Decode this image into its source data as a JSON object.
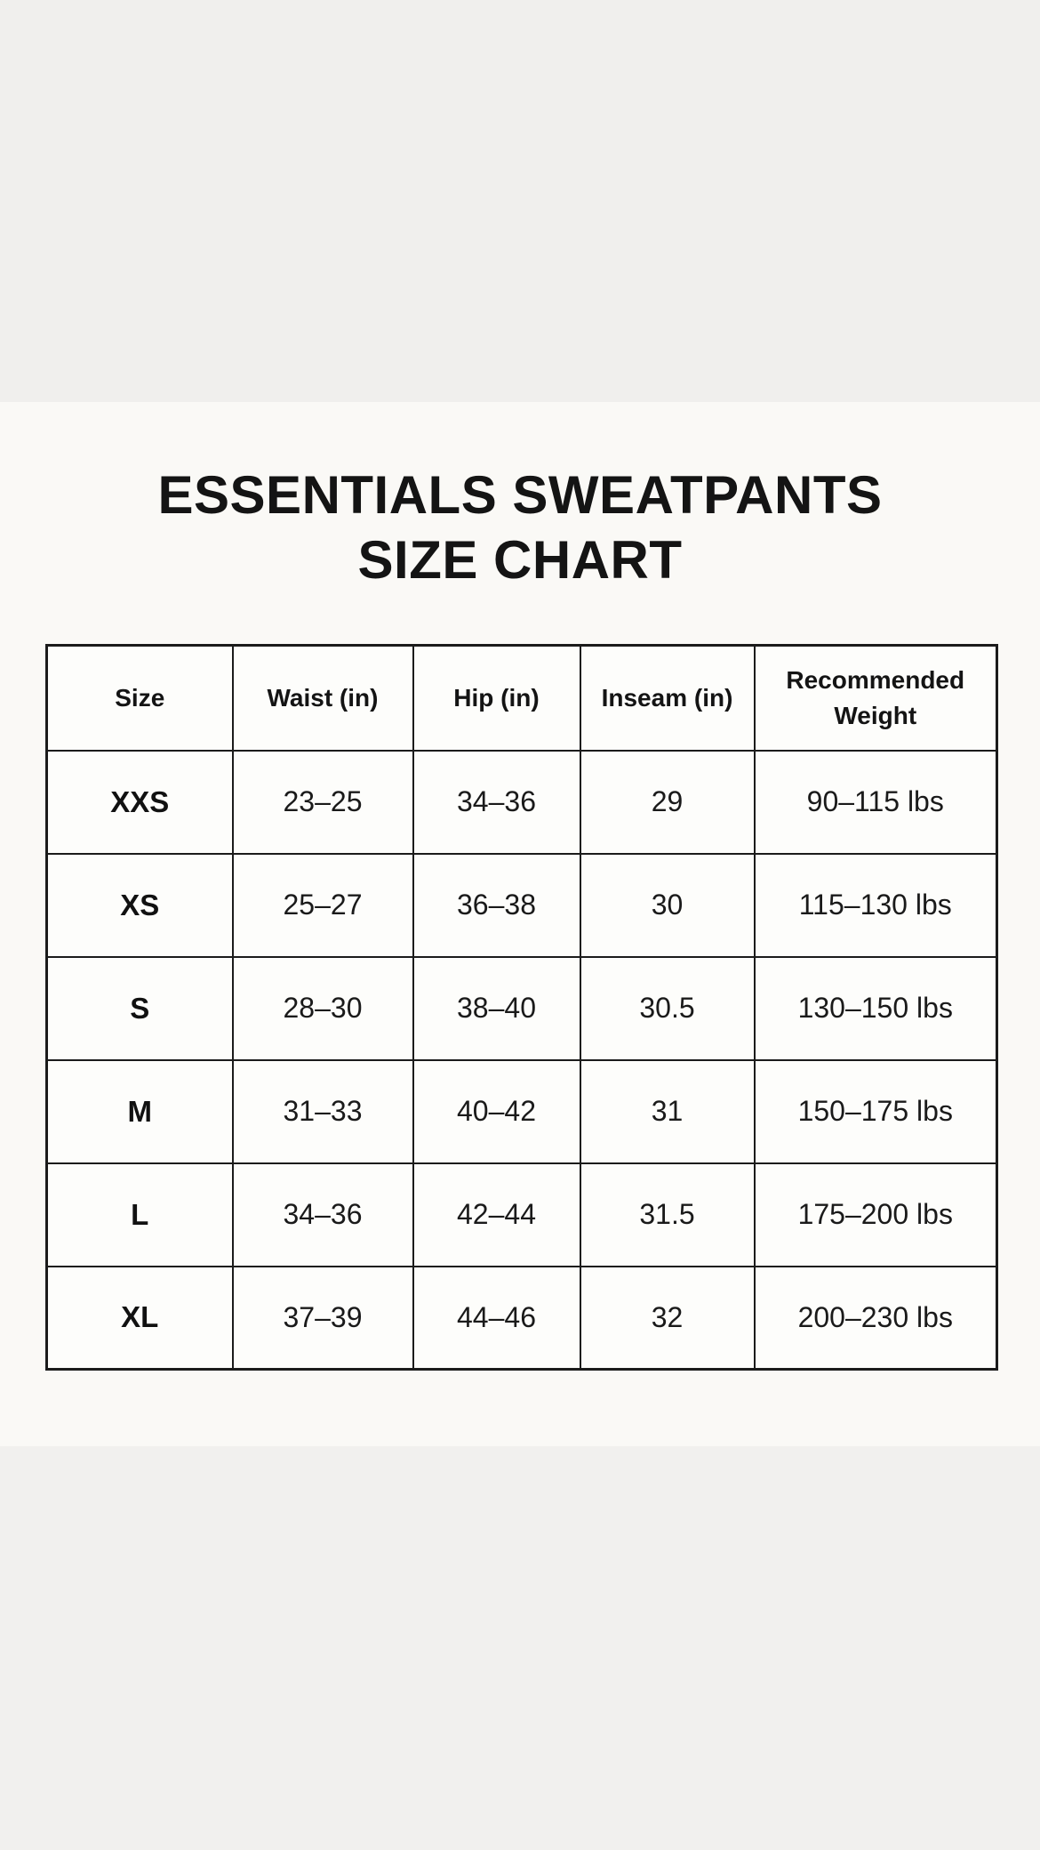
{
  "header": {
    "title_line1": "ESSENTIALS SWEATPANTS",
    "title_line2": "SIZE CHART"
  },
  "colors": {
    "top_band": "#f0efed",
    "bottom_band": "#f1f0ee",
    "content_background": "#faf9f6",
    "table_cell_background": "#fdfdfb",
    "table_border": "#1b1b1b",
    "text": "#141414"
  },
  "chart_data": {
    "type": "table",
    "title": "ESSENTIALS SWEATPANTS SIZE CHART",
    "columns": [
      "Size",
      "Waist (in)",
      "Hip (in)",
      "Inseam (in)",
      "Recommended Weight"
    ],
    "rows": [
      [
        "XXS",
        "23–25",
        "34–36",
        "29",
        "90–115 lbs"
      ],
      [
        "XS",
        "25–27",
        "36–38",
        "30",
        "115–130 lbs"
      ],
      [
        "S",
        "28–30",
        "38–40",
        "30.5",
        "130–150 lbs"
      ],
      [
        "M",
        "31–33",
        "40–42",
        "31",
        "150–175 lbs"
      ],
      [
        "L",
        "34–36",
        "42–44",
        "31.5",
        "175–200 lbs"
      ],
      [
        "XL",
        "37–39",
        "44–46",
        "32",
        "200–230 lbs"
      ]
    ]
  }
}
